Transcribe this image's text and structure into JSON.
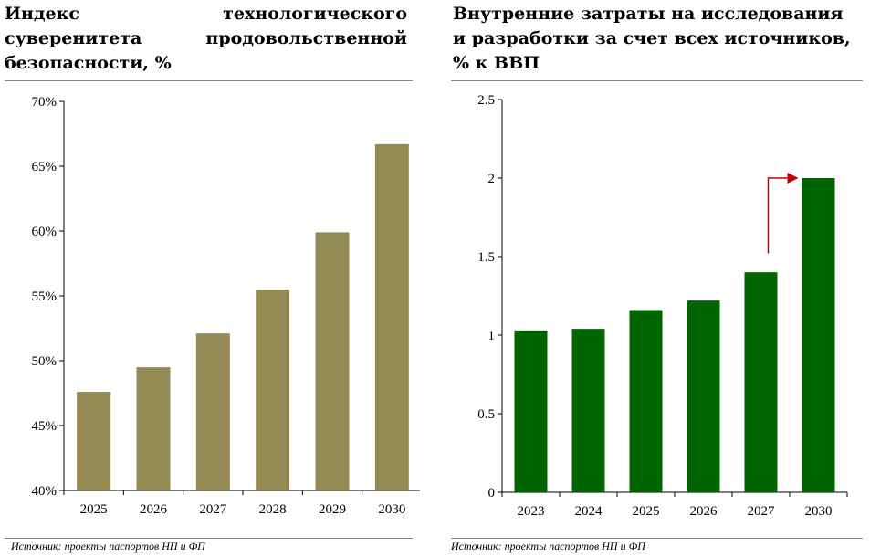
{
  "charts": {
    "left": {
      "title": "Индекс технологического суверенитета продовольственной безопасности, %",
      "source": "Источник: проекты паспортов НП и ФП"
    },
    "right": {
      "title": "Внутренние затраты на исследования и разработки за счет всех источников, % к ВВП",
      "source": "Источник: проекты паспортов НП и ФП"
    }
  },
  "chart_data": [
    {
      "type": "bar",
      "title": "Индекс технологического суверенитета продовольственной безопасности, %",
      "categories": [
        "2025",
        "2026",
        "2027",
        "2028",
        "2029",
        "2030"
      ],
      "values": [
        47.6,
        49.5,
        52.1,
        55.5,
        59.9,
        66.7
      ],
      "ylim": [
        40,
        70
      ],
      "yticks": [
        40,
        45,
        50,
        55,
        60,
        65,
        70
      ],
      "ytick_labels": [
        "40%",
        "45%",
        "50%",
        "55%",
        "60%",
        "65%",
        "70%"
      ],
      "bar_color": "#948b54",
      "grid": false,
      "legend": "none"
    },
    {
      "type": "bar",
      "title": "Внутренние затраты на исследования и разработки за счет всех источников, % к ВВП",
      "categories": [
        "2023",
        "2024",
        "2025",
        "2026",
        "2027",
        "2030"
      ],
      "values": [
        1.03,
        1.04,
        1.16,
        1.22,
        1.4,
        2.0
      ],
      "ylim": [
        0,
        2.5
      ],
      "yticks": [
        0,
        0.5,
        1,
        1.5,
        2,
        2.5
      ],
      "ytick_labels": [
        "0",
        "0.5",
        "1",
        "1.5",
        "2",
        "2.5"
      ],
      "bar_color": "#006400",
      "arrow_color": "#c00000",
      "annotation": "arrow from 2027 to 2030",
      "grid": false,
      "legend": "none"
    }
  ]
}
